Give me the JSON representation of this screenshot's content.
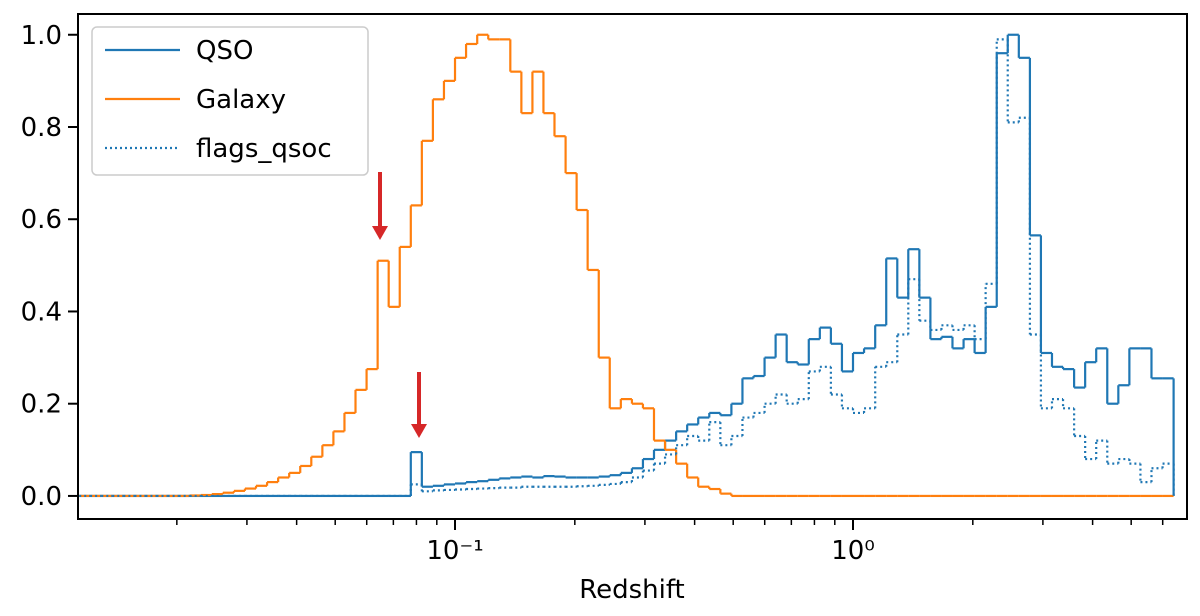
{
  "chart_data": {
    "type": "histogram_step",
    "xlabel": "Redshift",
    "xscale": "log",
    "xlim": [
      0.01129,
      6.906
    ],
    "ylim": [
      -0.05,
      1.045
    ],
    "xticks": [
      {
        "value": 0.1,
        "label": "10⁻¹"
      },
      {
        "value": 1,
        "label": "10⁰"
      }
    ],
    "xticks_minor": [
      0.02,
      0.03,
      0.04,
      0.05,
      0.06,
      0.07,
      0.08,
      0.09,
      0.2,
      0.3,
      0.4,
      0.5,
      0.6,
      0.7,
      0.8,
      0.9,
      2,
      3,
      4,
      5,
      6
    ],
    "yticks": [
      {
        "value": 0,
        "label": "0.0"
      },
      {
        "value": 0.2,
        "label": "0.2"
      },
      {
        "value": 0.4,
        "label": "0.4"
      },
      {
        "value": 0.6,
        "label": "0.6"
      },
      {
        "value": 0.8,
        "label": "0.8"
      },
      {
        "value": 1,
        "label": "1.0"
      }
    ],
    "legend": "upper left",
    "bins": [
      0.01137,
      0.01211,
      0.01292,
      0.01377,
      0.01468,
      0.01565,
      0.01668,
      0.01778,
      0.01896,
      0.02021,
      0.02154,
      0.02297,
      0.02448,
      0.0261,
      0.02783,
      0.02966,
      0.03162,
      0.03371,
      0.03594,
      0.03831,
      0.04084,
      0.04354,
      0.04642,
      0.04948,
      0.05275,
      0.05623,
      0.05995,
      0.06391,
      0.06813,
      0.07263,
      0.07743,
      0.08254,
      0.08799,
      0.0938,
      0.1,
      0.1066,
      0.1137,
      0.1212,
      0.1292,
      0.1377,
      0.1468,
      0.1565,
      0.1668,
      0.1778,
      0.1896,
      0.2021,
      0.2154,
      0.2297,
      0.2448,
      0.261,
      0.2783,
      0.2966,
      0.3162,
      0.3371,
      0.3594,
      0.3831,
      0.4084,
      0.4354,
      0.4642,
      0.4948,
      0.5275,
      0.5623,
      0.5995,
      0.6391,
      0.6813,
      0.7263,
      0.7743,
      0.8254,
      0.8799,
      0.938,
      1,
      1.066,
      1.137,
      1.212,
      1.292,
      1.377,
      1.468,
      1.565,
      1.668,
      1.778,
      1.896,
      2.021,
      2.154,
      2.297,
      2.448,
      2.61,
      2.783,
      2.966,
      3.162,
      3.371,
      3.594,
      3.831,
      4.084,
      4.354,
      4.642,
      4.948,
      5.275,
      5.623,
      5.995,
      6.391
    ],
    "series": [
      {
        "name": "QSO",
        "color": "#1f77b4",
        "linestyle": "solid",
        "values": [
          0,
          0,
          0,
          0,
          0,
          0,
          0,
          0,
          0,
          0,
          0,
          0,
          0,
          0,
          0,
          0,
          0,
          0,
          0,
          0,
          0,
          0,
          0,
          0,
          0,
          0,
          0,
          0,
          0,
          0,
          0.095,
          0.02,
          0.022,
          0.025,
          0.027,
          0.03,
          0.032,
          0.035,
          0.038,
          0.04,
          0.042,
          0.04,
          0.043,
          0.042,
          0.04,
          0.04,
          0.04,
          0.042,
          0.045,
          0.05,
          0.06,
          0.08,
          0.1,
          0.12,
          0.14,
          0.155,
          0.17,
          0.18,
          0.175,
          0.2,
          0.255,
          0.26,
          0.3,
          0.35,
          0.29,
          0.285,
          0.34,
          0.365,
          0.33,
          0.27,
          0.31,
          0.32,
          0.37,
          0.515,
          0.43,
          0.535,
          0.43,
          0.34,
          0.345,
          0.32,
          0.34,
          0.31,
          0.41,
          0.96,
          1.0,
          0.95,
          0.565,
          0.31,
          0.28,
          0.275,
          0.235,
          0.29,
          0.32,
          0.2,
          0.24,
          0.32,
          0.32,
          0.255,
          0.255
        ]
      },
      {
        "name": "Galaxy",
        "color": "#ff7f0e",
        "linestyle": "solid",
        "values": [
          0,
          0,
          0,
          0,
          0,
          0,
          0,
          0,
          0,
          0,
          0.001,
          0.002,
          0.004,
          0.007,
          0.011,
          0.016,
          0.022,
          0.03,
          0.04,
          0.05,
          0.065,
          0.085,
          0.11,
          0.14,
          0.18,
          0.23,
          0.275,
          0.51,
          0.41,
          0.54,
          0.63,
          0.77,
          0.86,
          0.9,
          0.95,
          0.98,
          1.0,
          0.99,
          0.99,
          0.92,
          0.83,
          0.92,
          0.83,
          0.78,
          0.7,
          0.62,
          0.49,
          0.3,
          0.19,
          0.21,
          0.2,
          0.19,
          0.12,
          0.1,
          0.07,
          0.04,
          0.02,
          0.015,
          0.005,
          0,
          0,
          0,
          0,
          0,
          0,
          0,
          0,
          0,
          0,
          0,
          0,
          0,
          0,
          0,
          0,
          0,
          0,
          0,
          0,
          0,
          0,
          0,
          0,
          0,
          0,
          0,
          0,
          0,
          0,
          0,
          0,
          0,
          0,
          0,
          0,
          0,
          0,
          0,
          0
        ]
      },
      {
        "name": "flags_qsoc",
        "color": "#1f77b4",
        "linestyle": "dotted",
        "values": [
          0,
          0,
          0,
          0,
          0,
          0,
          0,
          0,
          0,
          0,
          0,
          0,
          0,
          0,
          0,
          0,
          0,
          0,
          0,
          0,
          0,
          0,
          0,
          0,
          0,
          0,
          0,
          0,
          0,
          0,
          0.025,
          0.01,
          0.012,
          0.013,
          0.014,
          0.015,
          0.016,
          0.017,
          0.018,
          0.018,
          0.02,
          0.02,
          0.02,
          0.02,
          0.02,
          0.021,
          0.022,
          0.024,
          0.026,
          0.03,
          0.04,
          0.055,
          0.07,
          0.09,
          0.11,
          0.13,
          0.12,
          0.16,
          0.11,
          0.13,
          0.17,
          0.18,
          0.2,
          0.22,
          0.2,
          0.21,
          0.27,
          0.28,
          0.22,
          0.19,
          0.18,
          0.19,
          0.28,
          0.29,
          0.35,
          0.47,
          0.38,
          0.36,
          0.37,
          0.36,
          0.37,
          0.34,
          0.46,
          0.99,
          0.81,
          0.82,
          0.35,
          0.19,
          0.21,
          0.19,
          0.13,
          0.08,
          0.12,
          0.07,
          0.08,
          0.07,
          0.03,
          0.06,
          0.07
        ]
      }
    ]
  }
}
